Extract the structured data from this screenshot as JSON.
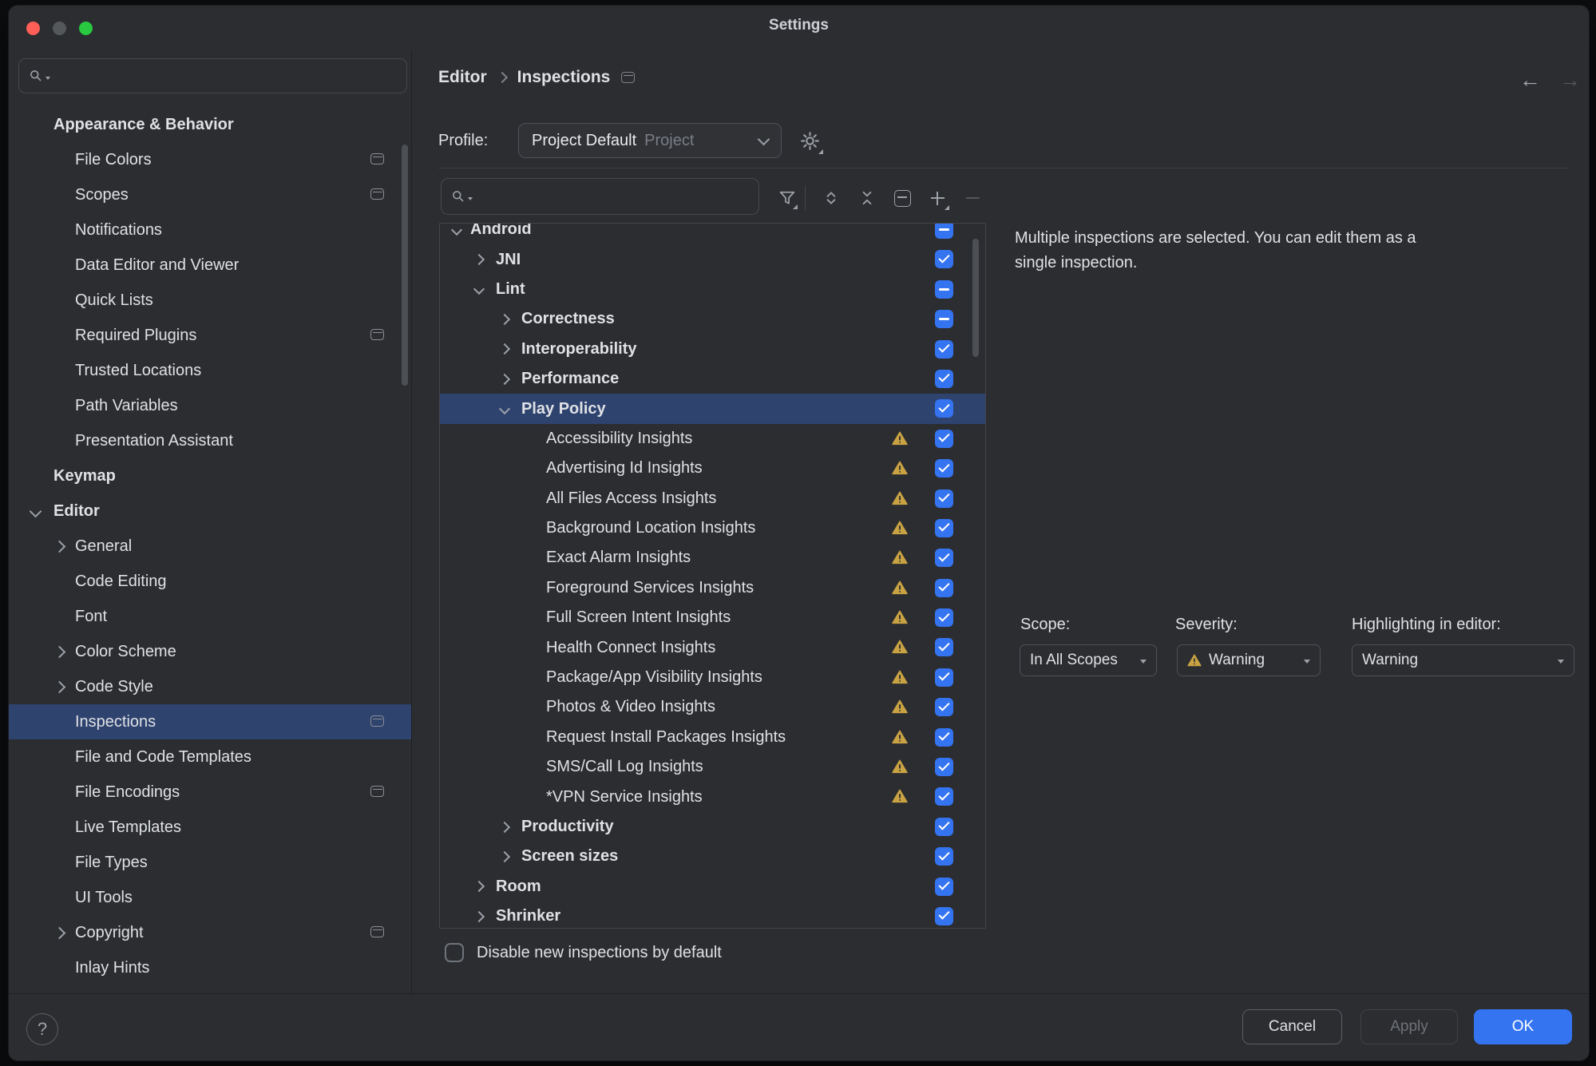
{
  "window": {
    "title": "Settings"
  },
  "titlebar": {
    "close": "close",
    "minimize": "minimize-disabled",
    "zoom": "zoom"
  },
  "sidebar": {
    "search_placeholder": "",
    "items": [
      {
        "label": "Appearance & Behavior",
        "section": true
      },
      {
        "label": "File Colors",
        "indent": 1,
        "icon": true
      },
      {
        "label": "Scopes",
        "indent": 1,
        "icon": true
      },
      {
        "label": "Notifications",
        "indent": 1
      },
      {
        "label": "Data Editor and Viewer",
        "indent": 1
      },
      {
        "label": "Quick Lists",
        "indent": 1
      },
      {
        "label": "Required Plugins",
        "indent": 1,
        "icon": true
      },
      {
        "label": "Trusted Locations",
        "indent": 1
      },
      {
        "label": "Path Variables",
        "indent": 1
      },
      {
        "label": "Presentation Assistant",
        "indent": 1
      },
      {
        "label": "Keymap",
        "section": true
      },
      {
        "label": "Editor",
        "section": true,
        "chevron": "down"
      },
      {
        "label": "General",
        "indent": 1,
        "chevron": "right"
      },
      {
        "label": "Code Editing",
        "indent": 1
      },
      {
        "label": "Font",
        "indent": 1
      },
      {
        "label": "Color Scheme",
        "indent": 1,
        "chevron": "right"
      },
      {
        "label": "Code Style",
        "indent": 1,
        "chevron": "right"
      },
      {
        "label": "Inspections",
        "indent": 1,
        "selected": true,
        "icon": true
      },
      {
        "label": "File and Code Templates",
        "indent": 1
      },
      {
        "label": "File Encodings",
        "indent": 1,
        "icon": true
      },
      {
        "label": "Live Templates",
        "indent": 1
      },
      {
        "label": "File Types",
        "indent": 1
      },
      {
        "label": "UI Tools",
        "indent": 1
      },
      {
        "label": "Copyright",
        "indent": 1,
        "chevron": "right",
        "icon": true
      },
      {
        "label": "Inlay Hints",
        "indent": 1
      }
    ]
  },
  "header": {
    "breadcrumb": [
      "Editor",
      "Inspections"
    ],
    "back_icon": "←",
    "forward_icon": "→"
  },
  "profile": {
    "label": "Profile:",
    "value": "Project Default",
    "scope": "Project"
  },
  "tree_toolbar": {
    "search_placeholder": "",
    "icons": [
      "filter",
      "expand-all",
      "collapse-all",
      "reset-inspection",
      "add-inspection",
      "remove-inspection"
    ]
  },
  "inspections_tree": {
    "items": [
      {
        "label": "Android",
        "level": 0,
        "chevron": "down",
        "bold": true,
        "state": "indeterminate"
      },
      {
        "label": "JNI",
        "level": 1,
        "chevron": "right",
        "bold": true,
        "state": "checked"
      },
      {
        "label": "Lint",
        "level": 1,
        "chevron": "down",
        "bold": true,
        "state": "indeterminate"
      },
      {
        "label": "Correctness",
        "level": 2,
        "chevron": "right",
        "bold": true,
        "state": "indeterminate"
      },
      {
        "label": "Interoperability",
        "level": 2,
        "chevron": "right",
        "bold": true,
        "state": "checked"
      },
      {
        "label": "Performance",
        "level": 2,
        "chevron": "right",
        "bold": true,
        "state": "checked"
      },
      {
        "label": "Play Policy",
        "level": 2,
        "chevron": "down",
        "bold": true,
        "state": "checked",
        "selected": true
      },
      {
        "label": "Accessibility Insights",
        "level": 3,
        "state": "checked",
        "warning": true
      },
      {
        "label": "Advertising Id Insights",
        "level": 3,
        "state": "checked",
        "warning": true
      },
      {
        "label": "All Files Access Insights",
        "level": 3,
        "state": "checked",
        "warning": true
      },
      {
        "label": "Background Location Insights",
        "level": 3,
        "state": "checked",
        "warning": true
      },
      {
        "label": "Exact Alarm Insights",
        "level": 3,
        "state": "checked",
        "warning": true
      },
      {
        "label": "Foreground Services Insights",
        "level": 3,
        "state": "checked",
        "warning": true
      },
      {
        "label": "Full Screen Intent Insights",
        "level": 3,
        "state": "checked",
        "warning": true
      },
      {
        "label": "Health Connect Insights",
        "level": 3,
        "state": "checked",
        "warning": true
      },
      {
        "label": "Package/App Visibility Insights",
        "level": 3,
        "state": "checked",
        "warning": true
      },
      {
        "label": "Photos & Video Insights",
        "level": 3,
        "state": "checked",
        "warning": true
      },
      {
        "label": "Request Install Packages Insights",
        "level": 3,
        "state": "checked",
        "warning": true
      },
      {
        "label": "SMS/Call Log Insights",
        "level": 3,
        "state": "checked",
        "warning": true
      },
      {
        "label": "*VPN Service Insights",
        "level": 3,
        "state": "checked",
        "warning": true
      },
      {
        "label": "Productivity",
        "level": 2,
        "chevron": "right",
        "bold": true,
        "state": "checked"
      },
      {
        "label": "Screen sizes",
        "level": 2,
        "chevron": "right",
        "bold": true,
        "state": "checked"
      },
      {
        "label": "Room",
        "level": 1,
        "chevron": "right",
        "bold": true,
        "state": "checked"
      },
      {
        "label": "Shrinker",
        "level": 1,
        "chevron": "right",
        "bold": true,
        "state": "checked"
      }
    ]
  },
  "details": {
    "message": "Multiple inspections are selected. You can edit them as a single inspection.",
    "scope": {
      "label": "Scope:",
      "value": "In All Scopes"
    },
    "severity": {
      "label": "Severity:",
      "value": "Warning"
    },
    "highlighting": {
      "label": "Highlighting in editor:",
      "value": "Warning"
    }
  },
  "footer": {
    "disable_label": "Disable new inspections by default",
    "help": "?",
    "cancel": "Cancel",
    "apply": "Apply",
    "ok": "OK"
  },
  "colors": {
    "accent": "#3574F0",
    "selection": "#2E436E",
    "warning": "#C9A243",
    "background": "#2B2D30"
  }
}
